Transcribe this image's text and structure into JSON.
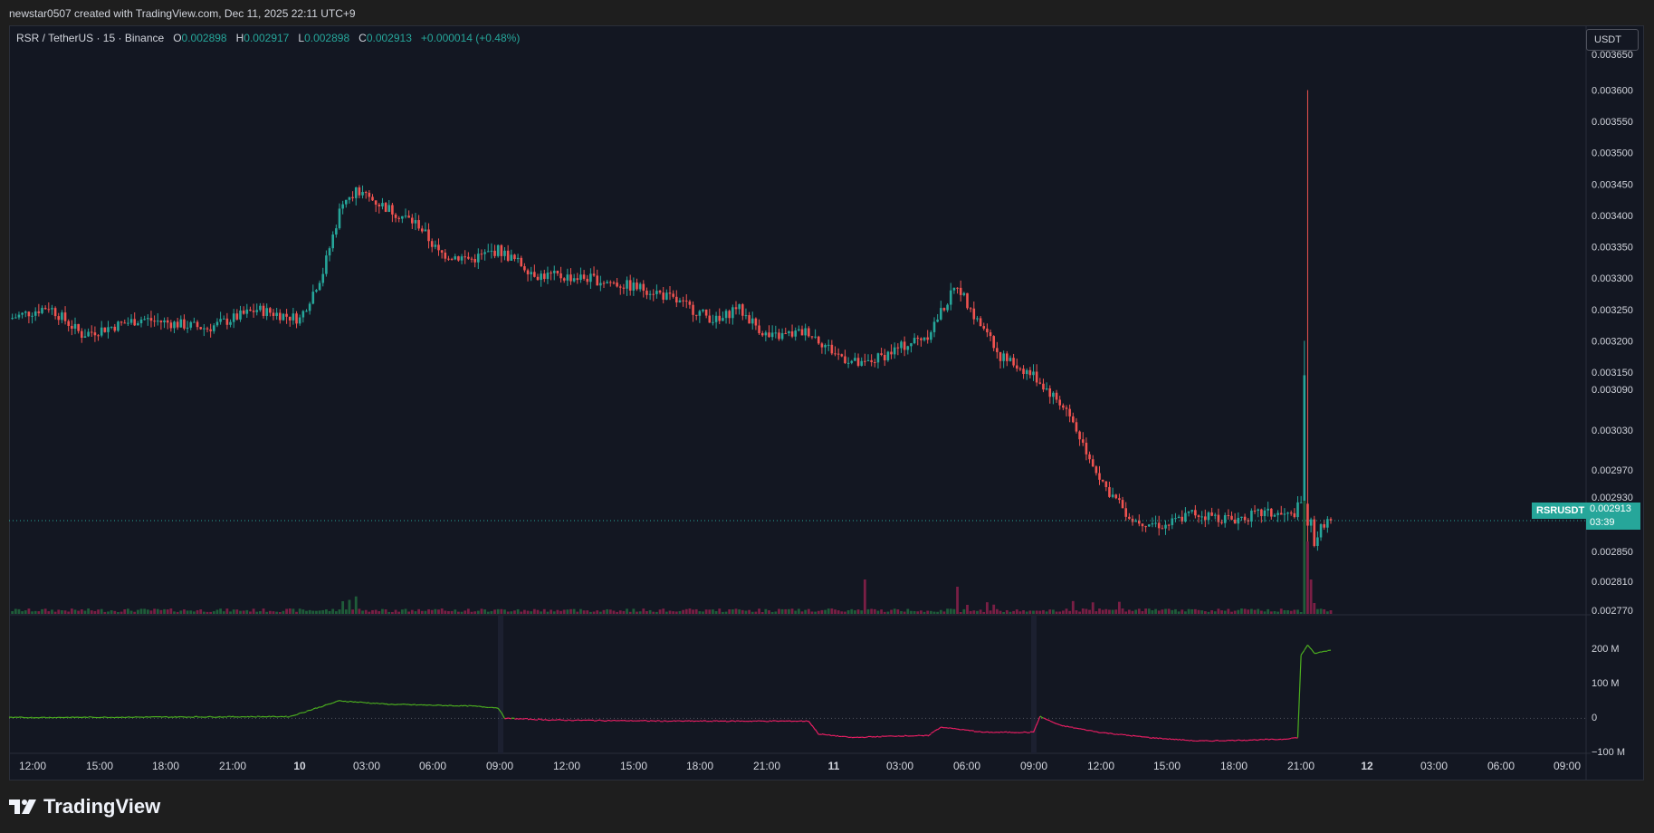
{
  "header": {
    "credit": "newstar0507 created with TradingView.com, Dec 11, 2025 22:11 UTC+9"
  },
  "legend": {
    "symbol": "RSR / TetherUS · 15 · Binance",
    "o_label": "O",
    "o_value": "0.002898",
    "h_label": "H",
    "h_value": "0.002917",
    "l_label": "L",
    "l_value": "0.002898",
    "c_label": "C",
    "c_value": "0.002913",
    "change": "+0.000014 (+0.48%)"
  },
  "unit_button": "USDT",
  "price_tag": {
    "symbol": "RSRUSDT",
    "price": "0.002913",
    "countdown": "03:39"
  },
  "brand": {
    "name": "TradingView"
  },
  "colors": {
    "up": "#26a69a",
    "down": "#ef5350",
    "vol_up": "#1f5d3a",
    "vol_down": "#7a1f45",
    "indicator_pos": "#4caf1f",
    "indicator_neg": "#e91e63"
  },
  "chart_data": {
    "type": "candlestick",
    "price_axis_labels": [
      "0.003650",
      "0.003600",
      "0.003550",
      "0.003500",
      "0.003450",
      "0.003400",
      "0.003350",
      "0.003300",
      "0.003250",
      "0.003200",
      "0.003150",
      "0.003090",
      "0.003030",
      "0.002970",
      "0.002930",
      "0.002850",
      "0.002810",
      "0.002770"
    ],
    "time_axis_labels": [
      "12:00",
      "15:00",
      "18:00",
      "21:00",
      "10",
      "03:00",
      "06:00",
      "09:00",
      "12:00",
      "15:00",
      "18:00",
      "21:00",
      "11",
      "03:00",
      "06:00",
      "09:00",
      "12:00",
      "15:00",
      "18:00",
      "21:00",
      "12",
      "03:00",
      "06:00",
      "09:00"
    ],
    "indicator_axis_labels": [
      "200 M",
      "100 M",
      "0",
      "−100 M"
    ],
    "last_price": 0.002913,
    "spike_high": 0.0036,
    "path_keypoints": [
      {
        "i": 0,
        "p": 0.003235
      },
      {
        "i": 12,
        "p": 0.003255
      },
      {
        "i": 22,
        "p": 0.00321
      },
      {
        "i": 40,
        "p": 0.003235
      },
      {
        "i": 60,
        "p": 0.00322
      },
      {
        "i": 75,
        "p": 0.00325
      },
      {
        "i": 88,
        "p": 0.003235
      },
      {
        "i": 95,
        "p": 0.00331
      },
      {
        "i": 101,
        "p": 0.003425
      },
      {
        "i": 105,
        "p": 0.00344
      },
      {
        "i": 115,
        "p": 0.00341
      },
      {
        "i": 124,
        "p": 0.003385
      },
      {
        "i": 130,
        "p": 0.00334
      },
      {
        "i": 140,
        "p": 0.00333
      },
      {
        "i": 148,
        "p": 0.003345
      },
      {
        "i": 160,
        "p": 0.003305
      },
      {
        "i": 175,
        "p": 0.0033
      },
      {
        "i": 195,
        "p": 0.00328
      },
      {
        "i": 215,
        "p": 0.00323
      },
      {
        "i": 220,
        "p": 0.003255
      },
      {
        "i": 230,
        "p": 0.003205
      },
      {
        "i": 242,
        "p": 0.003215
      },
      {
        "i": 250,
        "p": 0.00318
      },
      {
        "i": 258,
        "p": 0.00316
      },
      {
        "i": 268,
        "p": 0.003185
      },
      {
        "i": 278,
        "p": 0.00321
      },
      {
        "i": 287,
        "p": 0.00329
      },
      {
        "i": 292,
        "p": 0.00324
      },
      {
        "i": 300,
        "p": 0.003175
      },
      {
        "i": 310,
        "p": 0.003145
      },
      {
        "i": 320,
        "p": 0.00309
      },
      {
        "i": 326,
        "p": 0.003025
      },
      {
        "i": 332,
        "p": 0.002965
      },
      {
        "i": 340,
        "p": 0.002915
      },
      {
        "i": 350,
        "p": 0.002905
      },
      {
        "i": 358,
        "p": 0.002925
      },
      {
        "i": 370,
        "p": 0.002915
      },
      {
        "i": 380,
        "p": 0.002925
      },
      {
        "i": 388,
        "p": 0.00292
      },
      {
        "i": 391,
        "p": 0.00294
      },
      {
        "i": 393,
        "p": 0.00294
      },
      {
        "i": 395,
        "p": 0.00288
      },
      {
        "i": 398,
        "p": 0.00291
      },
      {
        "i": 400,
        "p": 0.002913
      }
    ],
    "indicator_keypoints": [
      {
        "i": 0,
        "v": 2
      },
      {
        "i": 85,
        "v": 5
      },
      {
        "i": 90,
        "v": 20
      },
      {
        "i": 100,
        "v": 50
      },
      {
        "i": 115,
        "v": 40
      },
      {
        "i": 140,
        "v": 35
      },
      {
        "i": 148,
        "v": 30
      },
      {
        "i": 150,
        "v": 0
      },
      {
        "i": 165,
        "v": -5
      },
      {
        "i": 200,
        "v": -8
      },
      {
        "i": 242,
        "v": -8
      },
      {
        "i": 245,
        "v": -45
      },
      {
        "i": 255,
        "v": -55
      },
      {
        "i": 270,
        "v": -50
      },
      {
        "i": 278,
        "v": -50
      },
      {
        "i": 282,
        "v": -25
      },
      {
        "i": 295,
        "v": -40
      },
      {
        "i": 305,
        "v": -40
      },
      {
        "i": 310,
        "v": -40
      },
      {
        "i": 312,
        "v": 5
      },
      {
        "i": 318,
        "v": -20
      },
      {
        "i": 330,
        "v": -40
      },
      {
        "i": 345,
        "v": -55
      },
      {
        "i": 360,
        "v": -65
      },
      {
        "i": 385,
        "v": -60
      },
      {
        "i": 390,
        "v": -55
      },
      {
        "i": 391,
        "v": 180
      },
      {
        "i": 393,
        "v": 210
      },
      {
        "i": 395,
        "v": 185
      },
      {
        "i": 400,
        "v": 195
      }
    ]
  }
}
